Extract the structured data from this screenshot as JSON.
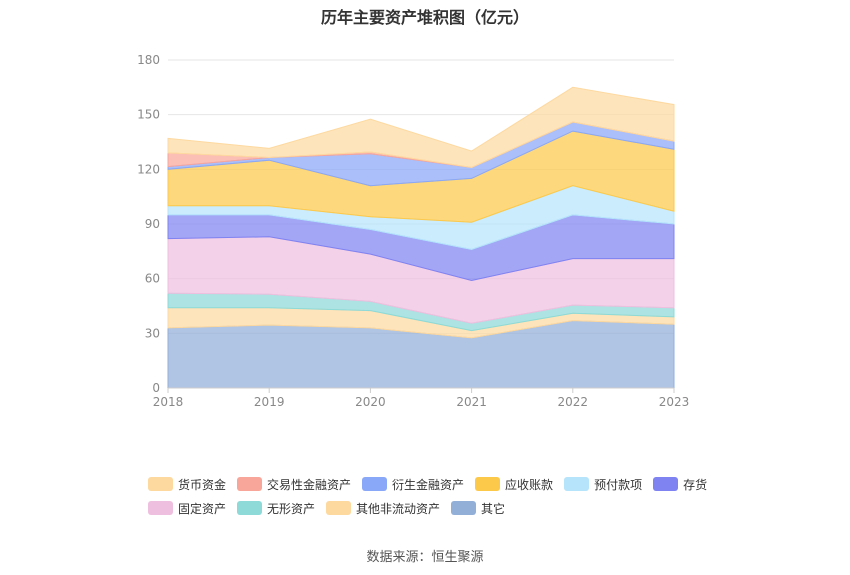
{
  "chart_data": {
    "type": "area",
    "stacked": true,
    "title": "历年主要资产堆积图（亿元）",
    "x": [
      "2018",
      "2019",
      "2020",
      "2021",
      "2022",
      "2023"
    ],
    "ylim": [
      0,
      180
    ],
    "yticks": [
      "0",
      "30",
      "60",
      "90",
      "120",
      "150",
      "180"
    ],
    "grid": true,
    "legend_position": "bottom",
    "series": [
      {
        "name": "其它",
        "color": "#92afd8",
        "values": [
          33,
          34.5,
          33,
          27.5,
          37,
          35
        ]
      },
      {
        "name": "其他非流动资产",
        "color": "#fdd9a0",
        "values": [
          11,
          9.5,
          9.5,
          4,
          4,
          4
        ]
      },
      {
        "name": "无形资产",
        "color": "#8ddad8",
        "values": [
          8,
          7.5,
          5,
          4,
          4.5,
          5
        ]
      },
      {
        "name": "固定资产",
        "color": "#eebfdf",
        "values": [
          30,
          31.5,
          26,
          23.5,
          25.5,
          27
        ]
      },
      {
        "name": "存货",
        "color": "#7f83f1",
        "values": [
          13,
          12,
          13.5,
          17,
          24,
          19
        ]
      },
      {
        "name": "预付款项",
        "color": "#b5e4fb",
        "values": [
          5,
          5,
          7,
          15,
          16,
          7
        ]
      },
      {
        "name": "应收账款",
        "color": "#fdc94a",
        "values": [
          20,
          25,
          17,
          24,
          30,
          34
        ]
      },
      {
        "name": "衍生金融资产",
        "color": "#8aa8f8",
        "values": [
          1.5,
          1.5,
          17.5,
          6,
          5,
          4.5
        ]
      },
      {
        "name": "交易性金融资产",
        "color": "#f9a69a",
        "values": [
          7.5,
          0,
          1,
          0,
          0,
          0
        ]
      },
      {
        "name": "货币资金",
        "color": "#fdd9a0",
        "values": [
          8,
          5,
          18,
          9,
          19,
          20
        ]
      }
    ],
    "legend": [
      [
        "货币资金",
        "交易性金融资产",
        "衍生金融资产",
        "应收账款",
        "预付款项",
        "存货"
      ],
      [
        "固定资产",
        "无形资产",
        "其他非流动资产",
        "其它"
      ]
    ],
    "legend_colors": [
      [
        "#fdd9a0",
        "#f9a69a",
        "#8aa8f8",
        "#fdc94a",
        "#b5e4fb",
        "#7f83f1"
      ],
      [
        "#eebfdf",
        "#8ddad8",
        "#fdd9a0",
        "#92afd8"
      ]
    ]
  },
  "source": "数据来源：恒生聚源"
}
